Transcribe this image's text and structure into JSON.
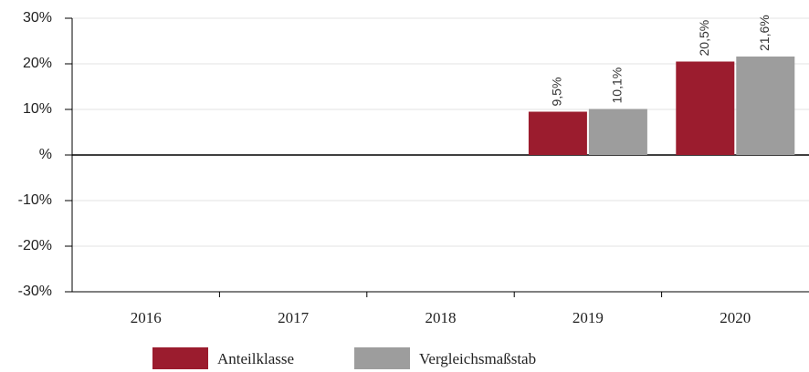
{
  "chart_data": {
    "type": "bar",
    "categories": [
      "2016",
      "2017",
      "2018",
      "2019",
      "2020"
    ],
    "series": [
      {
        "name": "Anteilklasse",
        "color": "#9b1c2e",
        "values": [
          null,
          null,
          null,
          9.5,
          20.5
        ],
        "value_labels": [
          null,
          null,
          null,
          "9,5%",
          "20,5%"
        ]
      },
      {
        "name": "Vergleichsmaßstab",
        "color": "#9d9d9d",
        "values": [
          null,
          null,
          null,
          10.1,
          21.6
        ],
        "value_labels": [
          null,
          null,
          null,
          "10,1%",
          "21,6%"
        ]
      }
    ],
    "ylim": [
      -30,
      30
    ],
    "yticks": [
      {
        "value": -30,
        "label": "-30%"
      },
      {
        "value": -20,
        "label": "-20%"
      },
      {
        "value": -10,
        "label": "-10%"
      },
      {
        "value": 0,
        "label": "%"
      },
      {
        "value": 10,
        "label": "10%"
      },
      {
        "value": 20,
        "label": "20%"
      },
      {
        "value": 30,
        "label": "30%"
      }
    ],
    "grid": true,
    "legend": "bottom"
  }
}
